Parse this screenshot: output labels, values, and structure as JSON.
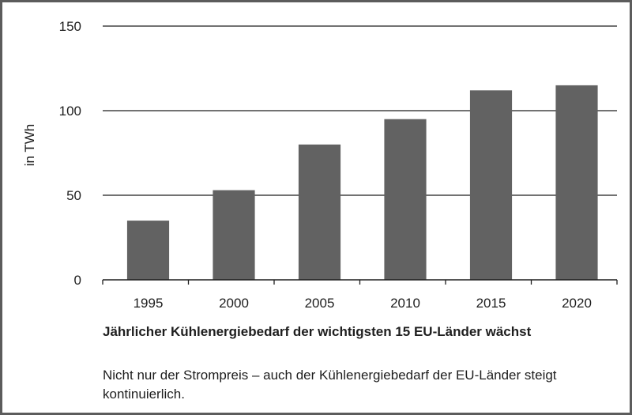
{
  "chart_data": {
    "type": "bar",
    "categories": [
      "1995",
      "2000",
      "2005",
      "2010",
      "2015",
      "2020"
    ],
    "values": [
      35,
      53,
      80,
      95,
      112,
      115
    ],
    "ylabel": "in TWh",
    "ylim": [
      0,
      150
    ],
    "yticks": [
      0,
      50,
      100,
      150
    ],
    "grid": true,
    "bar_color": "#626262"
  },
  "caption": {
    "title": "Jährlicher Kühlenergiebedarf der wichtigsten 15 EU-Länder wächst",
    "text": "Nicht nur der Strompreis – auch der Kühlenergiebedarf der EU-Länder steigt kontinuierlich."
  }
}
